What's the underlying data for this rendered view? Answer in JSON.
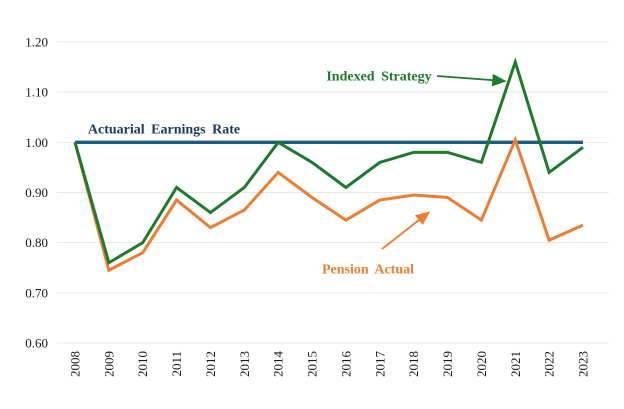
{
  "chart_data": {
    "type": "line",
    "title": "",
    "xlabel": "",
    "ylabel": "",
    "categories": [
      "2008",
      "2009",
      "2010",
      "2011",
      "2012",
      "2013",
      "2014",
      "2015",
      "2016",
      "2017",
      "2018",
      "2019",
      "2020",
      "2021",
      "2022",
      "2023"
    ],
    "y_axis": {
      "tick_labels": [
        "1.20",
        "1.10",
        "1.00",
        "0.90",
        "0.80",
        "0.70",
        "0.60"
      ],
      "min": 0.6,
      "max": 1.2,
      "grid": true,
      "grid_color": "#e8e8e8"
    },
    "legend": "none (series labeled by in-plot annotations)",
    "series": [
      {
        "name": "Actuarial Earnings Rate",
        "color": "#1c5d7f",
        "stroke_width": 3.4,
        "values": [
          1.0,
          1.0,
          1.0,
          1.0,
          1.0,
          1.0,
          1.0,
          1.0,
          1.0,
          1.0,
          1.0,
          1.0,
          1.0,
          1.0,
          1.0,
          1.0
        ]
      },
      {
        "name": "Pension Actual",
        "color": "#ed7d31",
        "stroke_width": 3,
        "values": [
          1.0,
          0.745,
          0.78,
          0.885,
          0.83,
          0.865,
          0.94,
          0.89,
          0.845,
          0.885,
          0.895,
          0.89,
          0.845,
          1.005,
          0.805,
          0.835
        ]
      },
      {
        "name": "Indexed Strategy",
        "color": "#1e7b2c",
        "stroke_width": 3,
        "values": [
          1.0,
          0.76,
          0.8,
          0.91,
          0.86,
          0.91,
          1.0,
          0.96,
          0.91,
          0.96,
          0.98,
          0.98,
          0.96,
          1.16,
          0.94,
          0.99
        ]
      }
    ],
    "annotations": {
      "actuarial": {
        "text": "Actuarial Earnings Rate",
        "color": "#1f3864"
      },
      "indexed": {
        "text": "Indexed Strategy",
        "color": "#1e7b2c"
      },
      "pension": {
        "text": "Pension Actual",
        "color": "#ed7d31"
      }
    }
  }
}
